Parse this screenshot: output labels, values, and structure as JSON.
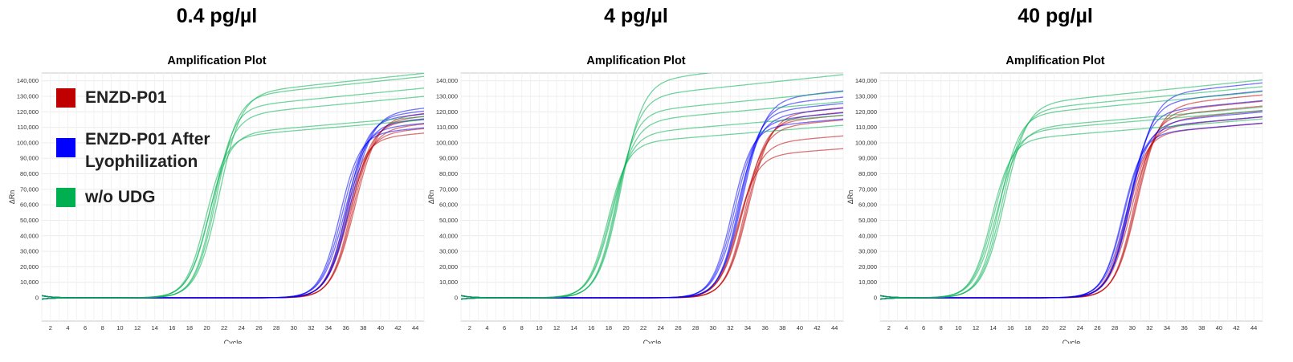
{
  "legend": {
    "items": [
      {
        "label": "ENZD-P01",
        "color": "#c00000"
      },
      {
        "label": "ENZD-P01 After Lyophilization",
        "color": "#0000ff"
      },
      {
        "label": "w/o UDG",
        "color": "#00b050"
      }
    ]
  },
  "chart_data": [
    {
      "type": "line",
      "heading": "0.4 pg/µl",
      "title": "Amplification Plot",
      "xlabel": "Cycle",
      "ylabel": "ΔRn",
      "xlim": [
        1,
        45
      ],
      "ylim": [
        -15000,
        145000
      ],
      "xticks": [
        2,
        4,
        6,
        8,
        10,
        12,
        14,
        16,
        18,
        20,
        22,
        24,
        26,
        28,
        30,
        32,
        34,
        36,
        38,
        40,
        42,
        44
      ],
      "yticks": [
        0,
        10000,
        20000,
        30000,
        40000,
        50000,
        60000,
        70000,
        80000,
        90000,
        100000,
        110000,
        120000,
        130000,
        140000
      ],
      "ytick_labels": [
        "0",
        "10,000",
        "20,000",
        "30,000",
        "40,000",
        "50,000",
        "60,000",
        "70,000",
        "80,000",
        "90,000",
        "100,000",
        "110,000",
        "120,000",
        "130,000",
        "140,000"
      ],
      "grid": true,
      "series": [
        {
          "group": "ENZD-P01",
          "color": "#c00000",
          "midpoints": [
            35.9,
            36.2,
            36.4,
            36.6,
            36.8,
            37.0
          ],
          "plateaus": [
            103000,
            106000,
            109000,
            112000,
            114000,
            116000
          ]
        },
        {
          "group": "ENZD-P01 After Lyophilization",
          "color": "#0000ff",
          "midpoints": [
            35.3,
            35.6,
            35.9,
            36.1,
            36.3,
            36.5
          ],
          "plateaus": [
            106000,
            109000,
            112000,
            115000,
            117000,
            119000
          ]
        },
        {
          "group": "w/o UDG",
          "color": "#00b050",
          "midpoints": [
            19.9,
            20.2,
            20.5,
            20.8,
            21.1,
            21.4
          ],
          "plateaus": [
            104000,
            106000,
            118000,
            123000,
            130000,
            132000
          ]
        }
      ]
    },
    {
      "type": "line",
      "heading": "4 pg/µl",
      "title": "Amplification Plot",
      "xlabel": "Cycle",
      "ylabel": "ΔRn",
      "xlim": [
        1,
        45
      ],
      "ylim": [
        -15000,
        145000
      ],
      "xticks": [
        2,
        4,
        6,
        8,
        10,
        12,
        14,
        16,
        18,
        20,
        22,
        24,
        26,
        28,
        30,
        32,
        34,
        36,
        38,
        40,
        42,
        44
      ],
      "yticks": [
        0,
        10000,
        20000,
        30000,
        40000,
        50000,
        60000,
        70000,
        80000,
        90000,
        100000,
        110000,
        120000,
        130000,
        140000
      ],
      "ytick_labels": [
        "0",
        "10,000",
        "20,000",
        "30,000",
        "40,000",
        "50,000",
        "60,000",
        "70,000",
        "80,000",
        "90,000",
        "100,000",
        "110,000",
        "120,000",
        "130,000",
        "140,000"
      ],
      "grid": true,
      "series": [
        {
          "group": "ENZD-P01",
          "color": "#c00000",
          "midpoints": [
            32.8,
            33.1,
            33.4,
            33.7,
            33.9,
            34.1
          ],
          "plateaus": [
            92000,
            100000,
            110000,
            113000,
            115000,
            118000
          ]
        },
        {
          "group": "ENZD-P01 After Lyophilization",
          "color": "#0000ff",
          "midpoints": [
            32.2,
            32.5,
            32.8,
            33.0,
            33.2,
            33.4
          ],
          "plateaus": [
            110000,
            114000,
            117000,
            120000,
            124000,
            128000
          ]
        },
        {
          "group": "w/o UDG",
          "color": "#00b050",
          "midpoints": [
            17.9,
            18.2,
            18.5,
            18.8,
            19.1,
            19.4
          ],
          "plateaus": [
            100000,
            106000,
            114000,
            120000,
            130000,
            140000
          ]
        }
      ]
    },
    {
      "type": "line",
      "heading": "40 pg/µl",
      "title": "Amplification Plot",
      "xlabel": "Cycle",
      "ylabel": "ΔRn",
      "xlim": [
        1,
        45
      ],
      "ylim": [
        -15000,
        145000
      ],
      "xticks": [
        2,
        4,
        6,
        8,
        10,
        12,
        14,
        16,
        18,
        20,
        22,
        24,
        26,
        28,
        30,
        32,
        34,
        36,
        38,
        40,
        42,
        44
      ],
      "yticks": [
        0,
        10000,
        20000,
        30000,
        40000,
        50000,
        60000,
        70000,
        80000,
        90000,
        100000,
        110000,
        120000,
        130000,
        140000
      ],
      "ytick_labels": [
        "0",
        "10,000",
        "20,000",
        "30,000",
        "40,000",
        "50,000",
        "60,000",
        "70,000",
        "80,000",
        "90,000",
        "100,000",
        "110,000",
        "120,000",
        "130,000",
        "140,000"
      ],
      "grid": true,
      "series": [
        {
          "group": "ENZD-P01",
          "color": "#c00000",
          "midpoints": [
            29.3,
            29.6,
            29.9,
            30.2,
            30.4,
            30.6
          ],
          "plateaus": [
            106000,
            110000,
            114000,
            117000,
            120000,
            124000
          ]
        },
        {
          "group": "ENZD-P01 After Lyophilization",
          "color": "#0000ff",
          "midpoints": [
            28.9,
            29.1,
            29.4,
            29.6,
            29.8,
            30.0
          ],
          "plateaus": [
            106000,
            110000,
            113000,
            120000,
            126000,
            131000
          ]
        },
        {
          "group": "w/o UDG",
          "color": "#00b050",
          "midpoints": [
            13.8,
            14.1,
            14.4,
            14.7,
            15.0,
            15.3
          ],
          "plateaus": [
            102000,
            107000,
            109000,
            118000,
            121000,
            125000
          ]
        }
      ]
    }
  ]
}
